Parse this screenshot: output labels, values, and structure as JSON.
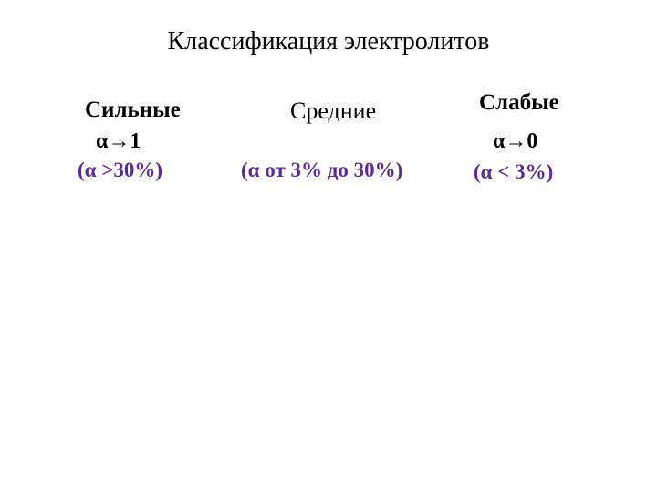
{
  "title": "Классификация электролитов",
  "columns": {
    "strong": {
      "header": "Сильные",
      "alpha": "α→1",
      "range": "(α >30%)"
    },
    "medium": {
      "header": "Средние",
      "range": "(α от 3% до 30%)"
    },
    "weak": {
      "header": "Слабые",
      "alpha": "α→0",
      "range": "(α < 3%)"
    }
  },
  "styling": {
    "background_color": "#ffffff",
    "title_color": "#000000",
    "header_color": "#000000",
    "range_color": "#5c2d91",
    "title_fontsize": 28,
    "header_fontsize": 25,
    "alpha_fontsize": 24,
    "range_fontsize": 23,
    "font_family": "Times New Roman"
  }
}
